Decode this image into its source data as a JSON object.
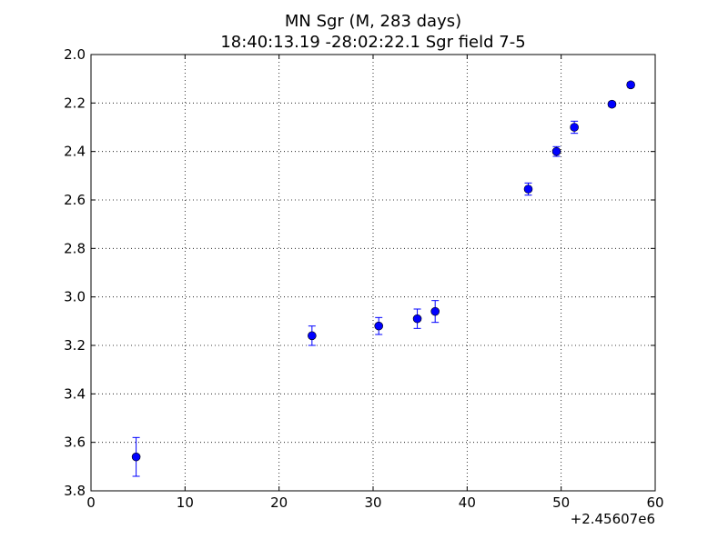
{
  "chart_data": {
    "type": "scatter",
    "title": "MN Sgr  (M, 283 days)",
    "subtitle": "18:40:13.19 -28:02:22.1 Sgr field 7-5",
    "xlabel": "",
    "ylabel": "",
    "x_offset_label": "+2.45607e6",
    "xlim": [
      0,
      60
    ],
    "ylim": [
      3.8,
      2.0
    ],
    "y_inverted": true,
    "grid": true,
    "grid_style": "dotted",
    "xticks": [
      "0",
      "10",
      "20",
      "30",
      "40",
      "50",
      "60"
    ],
    "yticks": [
      "2.0",
      "2.2",
      "2.4",
      "2.6",
      "2.8",
      "3.0",
      "3.2",
      "3.4",
      "3.6",
      "3.8"
    ],
    "marker_color": "#0000ff",
    "points": [
      {
        "x": 4.8,
        "y": 3.66,
        "err": 0.08
      },
      {
        "x": 23.5,
        "y": 3.16,
        "err": 0.04
      },
      {
        "x": 30.6,
        "y": 3.12,
        "err": 0.035
      },
      {
        "x": 34.7,
        "y": 3.09,
        "err": 0.04
      },
      {
        "x": 36.6,
        "y": 3.06,
        "err": 0.045
      },
      {
        "x": 46.5,
        "y": 2.555,
        "err": 0.025
      },
      {
        "x": 49.5,
        "y": 2.4,
        "err": 0.02
      },
      {
        "x": 51.4,
        "y": 2.3,
        "err": 0.025
      },
      {
        "x": 55.4,
        "y": 2.205,
        "err": 0.01
      },
      {
        "x": 57.4,
        "y": 2.125,
        "err": 0.01
      }
    ]
  }
}
